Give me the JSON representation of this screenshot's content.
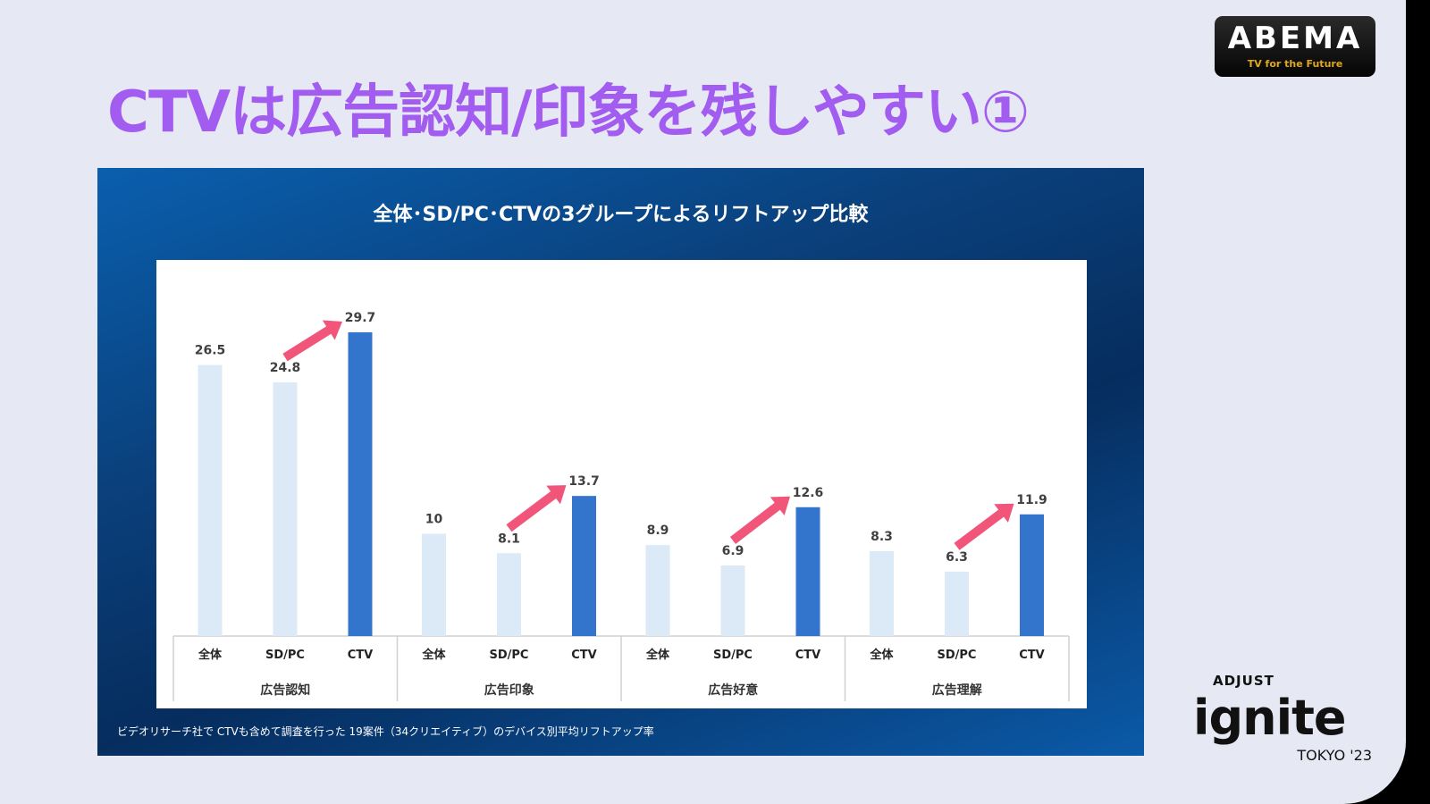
{
  "slide": {
    "title": "CTVは広告認知/印象を残しやすい①",
    "footnote": "ビデオリサーチ社で CTVも含めて調査を行った 19案件（34クリエイティブ）のデバイス別平均リフトアップ率"
  },
  "logos": {
    "abema": "ABEMA",
    "abema_tagline": "TV for the Future",
    "adjust": "ADJUST",
    "ignite": "ignite",
    "tokyo": "TOKYO '23"
  },
  "chart_data": {
    "type": "bar",
    "title": "全体･SD/PC･CTVの3グループによるリフトアップ比較",
    "groups": [
      "広告認知",
      "広告印象",
      "広告好意",
      "広告理解"
    ],
    "categories": [
      "全体",
      "SD/PC",
      "CTV"
    ],
    "values": [
      [
        26.5,
        24.8,
        29.7
      ],
      [
        10,
        8.1,
        13.7
      ],
      [
        8.9,
        6.9,
        12.6
      ],
      [
        8.3,
        6.3,
        11.9
      ]
    ],
    "ylim": [
      0,
      30
    ],
    "grid": false,
    "colors": {
      "全体": "#dce9f6",
      "SD/PC": "#dce9f6",
      "CTV": "#3375cc",
      "arrow": "#f2557a"
    }
  }
}
